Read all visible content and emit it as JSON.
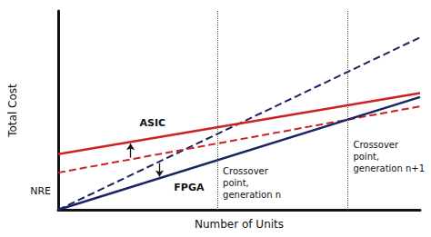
{
  "chart_data": {
    "type": "line",
    "xlabel": "Number of Units",
    "ylabel": "Total Cost",
    "x": [
      0,
      10
    ],
    "xlim": [
      0,
      10
    ],
    "ylim": [
      0,
      15
    ],
    "tick_labels": false,
    "grid": false,
    "series": [
      {
        "values": [
          0,
          13.0
        ],
        "color": "#1a2464",
        "line_style": "dashed"
      },
      {
        "values": [
          0,
          8.5
        ],
        "color": "#1a2464",
        "line_style": "solid",
        "label": "FPGA"
      },
      {
        "values": [
          4.2,
          8.8
        ],
        "color": "#cc2222",
        "line_style": "solid",
        "label": "ASIC"
      },
      {
        "values": [
          2.8,
          7.8
        ],
        "color": "#cc2222",
        "line_style": "dashed"
      }
    ],
    "nre": {
      "value": 2.8,
      "label": "NRE"
    },
    "crossovers": [
      {
        "x": 4.4,
        "label": "Crossover\npoint,\ngeneration n"
      },
      {
        "x": 8.0,
        "label": "Crossover\npoint,\ngeneration n+1"
      }
    ]
  }
}
